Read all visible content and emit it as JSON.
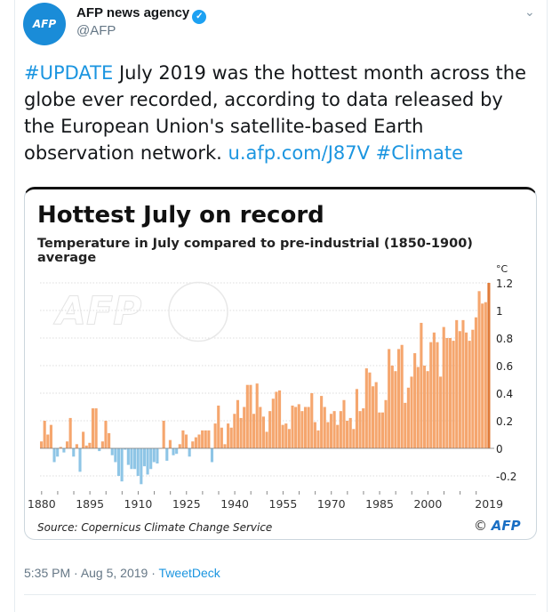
{
  "author": {
    "name": "AFP news agency",
    "handle": "@AFP",
    "avatar_text": "AFP",
    "verified": true
  },
  "tweet": {
    "hashtag1": "#UPDATE",
    "body": " July 2019 was the hottest month across the globe ever recorded, according to data released by the European Union's satellite-based Earth observation network. ",
    "link": "u.afp.com/J87V",
    "hashtag2": "#Climate"
  },
  "meta": {
    "time": "5:35 PM",
    "date": "Aug 5, 2019",
    "source": "TweetDeck",
    "sep": " · "
  },
  "chart_data": {
    "type": "bar",
    "title": "Hottest July on record",
    "subtitle": "Temperature in July compared to pre-industrial (1850-1900) average",
    "ylabel": "°C",
    "ylim": [
      -0.25,
      1.25
    ],
    "yticks": [
      "-0.2",
      "0",
      "0.2",
      "0.4",
      "0.6",
      "0.8",
      "1",
      "1.2"
    ],
    "xticks": [
      "1880",
      "1895",
      "1910",
      "1925",
      "1940",
      "1955",
      "1970",
      "1985",
      "2000",
      "2019"
    ],
    "grid": true,
    "x_start": 1880,
    "colors": {
      "positive": "#f5a66e",
      "negative": "#8ec5e6",
      "latest": "#e07b3a"
    },
    "values": [
      0.05,
      0.2,
      0.1,
      0.17,
      -0.1,
      -0.06,
      0.01,
      -0.03,
      0.05,
      0.22,
      -0.06,
      0.03,
      -0.17,
      0.12,
      0.02,
      0.04,
      0.29,
      0.29,
      -0.02,
      0.05,
      0.2,
      0.11,
      -0.05,
      -0.1,
      -0.2,
      -0.24,
      -0.01,
      -0.12,
      -0.15,
      -0.15,
      -0.2,
      -0.26,
      -0.13,
      -0.19,
      -0.15,
      -0.1,
      -0.11,
      0.0,
      0.2,
      -0.09,
      0.06,
      -0.05,
      -0.04,
      0.03,
      0.13,
      0.1,
      -0.06,
      0.05,
      0.08,
      0.1,
      0.13,
      0.13,
      0.13,
      -0.1,
      0.18,
      0.31,
      0.15,
      0.03,
      0.18,
      0.15,
      0.25,
      0.35,
      0.22,
      0.3,
      0.46,
      0.46,
      0.25,
      0.47,
      0.3,
      0.23,
      0.12,
      0.27,
      0.36,
      0.41,
      0.42,
      0.17,
      0.18,
      0.14,
      0.31,
      0.3,
      0.32,
      0.27,
      0.3,
      0.3,
      0.4,
      0.19,
      0.13,
      0.38,
      0.3,
      0.19,
      0.25,
      0.27,
      0.17,
      0.27,
      0.35,
      0.2,
      0.22,
      0.14,
      0.43,
      0.27,
      0.29,
      0.58,
      0.55,
      0.45,
      0.48,
      0.26,
      0.26,
      0.35,
      0.72,
      0.6,
      0.56,
      0.72,
      0.75,
      0.33,
      0.44,
      0.52,
      0.69,
      0.59,
      0.91,
      0.6,
      0.56,
      0.77,
      0.84,
      0.77,
      0.52,
      0.88,
      0.8,
      0.8,
      0.78,
      0.93,
      0.85,
      0.93,
      0.84,
      0.78,
      0.86,
      0.95,
      1.14,
      1.05,
      1.06,
      1.2
    ],
    "source": "Source: Copernicus Climate Change Service",
    "credit": "AFP"
  }
}
